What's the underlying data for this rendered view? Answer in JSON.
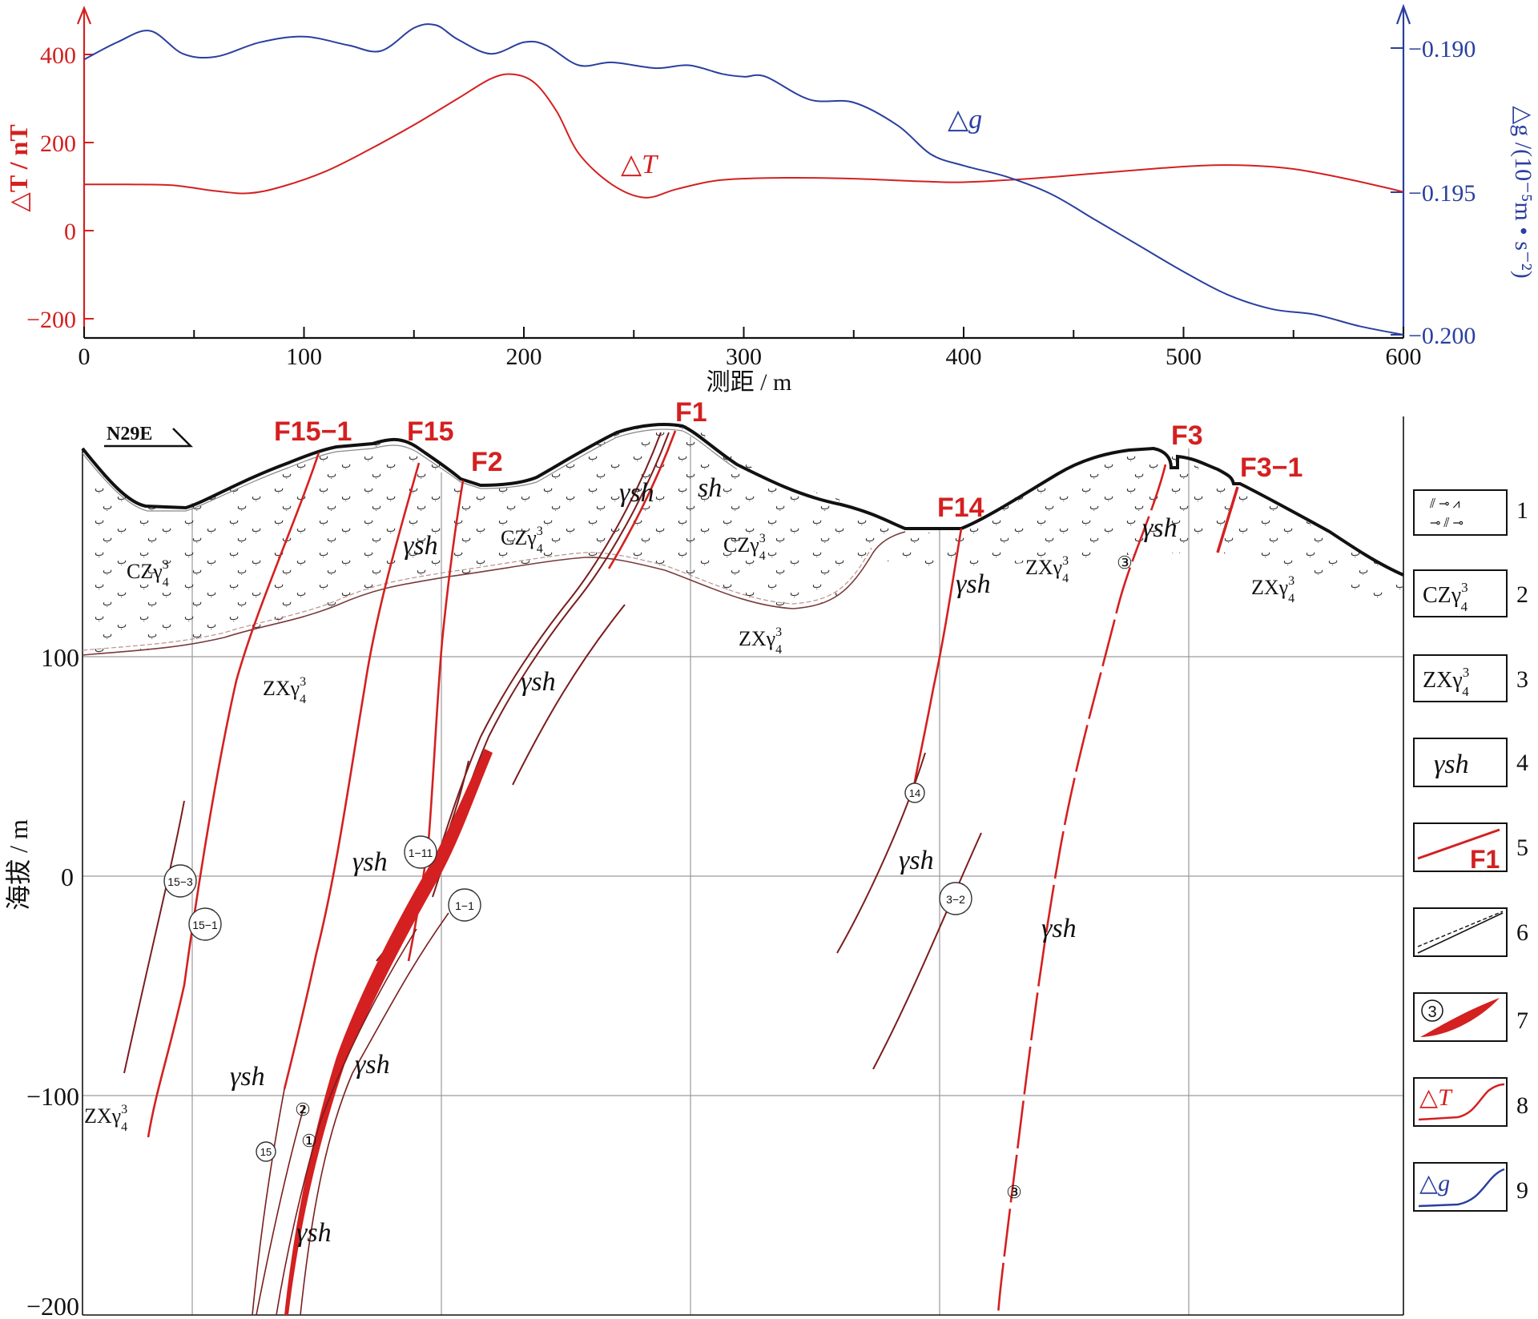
{
  "colors": {
    "delta_t": "#d42020",
    "delta_g": "#2a3f9f",
    "fault": "#d42020",
    "dyke": "#7a1d1d",
    "ink": "#111111",
    "grid": "#9a9a9a"
  },
  "chart_data": {
    "type": "line",
    "x_axis": {
      "label": "测距 / m",
      "range": [
        0,
        600
      ],
      "ticks": [
        "0",
        "100",
        "200",
        "300",
        "400",
        "500",
        "600"
      ]
    },
    "y_left": {
      "label": "△T / nT",
      "range": [
        -200,
        450
      ],
      "ticks": [
        "400",
        "200",
        "0",
        "−200"
      ]
    },
    "y_right": {
      "label": "△g /(10⁻⁵m • s⁻²)",
      "range": [
        -0.2,
        -0.1887
      ],
      "ticks": [
        "−0.190",
        "−0.195",
        "−0.200"
      ]
    },
    "series": [
      {
        "name": "△T",
        "axis": "left",
        "x": [
          0,
          20,
          40,
          60,
          75,
          90,
          110,
          130,
          150,
          170,
          185,
          195,
          205,
          215,
          225,
          240,
          255,
          270,
          290,
          320,
          350,
          380,
          400,
          430,
          460,
          490,
          510,
          530,
          550,
          570,
          590,
          600
        ],
        "y": [
          105,
          105,
          103,
          90,
          85,
          100,
          135,
          185,
          240,
          300,
          345,
          355,
          335,
          270,
          175,
          105,
          75,
          95,
          115,
          120,
          118,
          112,
          110,
          118,
          130,
          142,
          148,
          148,
          140,
          122,
          100,
          88
        ]
      },
      {
        "name": "△g",
        "axis": "right",
        "x": [
          0,
          15,
          30,
          45,
          60,
          80,
          100,
          120,
          135,
          150,
          160,
          170,
          185,
          200,
          210,
          225,
          240,
          260,
          275,
          290,
          300,
          310,
          330,
          350,
          370,
          385,
          400,
          420,
          440,
          460,
          480,
          500,
          520,
          540,
          560,
          580,
          600
        ],
        "y": [
          -0.1904,
          -0.1898,
          -0.1894,
          -0.1902,
          -0.1903,
          -0.1898,
          -0.1896,
          -0.1899,
          -0.1901,
          -0.1893,
          -0.1892,
          -0.1897,
          -0.1902,
          -0.1898,
          -0.1899,
          -0.1906,
          -0.1905,
          -0.1907,
          -0.1906,
          -0.1909,
          -0.191,
          -0.191,
          -0.1918,
          -0.1919,
          -0.1927,
          -0.1937,
          -0.1941,
          -0.1945,
          -0.1951,
          -0.196,
          -0.1969,
          -0.1978,
          -0.1986,
          -0.1991,
          -0.1993,
          -0.1997,
          -0.2
        ]
      }
    ],
    "labels": {
      "delta_t": "△T",
      "delta_g": "△g"
    }
  },
  "section": {
    "direction": "N29E",
    "y_axis": {
      "label": "海拔 / m",
      "ticks": [
        "100",
        "0",
        "−100",
        "−200"
      ]
    },
    "faults": [
      {
        "id": "F15-1",
        "label": "F15−1"
      },
      {
        "id": "F15",
        "label": "F15"
      },
      {
        "id": "F2",
        "label": "F2"
      },
      {
        "id": "F1",
        "label": "F1"
      },
      {
        "id": "F14",
        "label": "F14"
      },
      {
        "id": "F3",
        "label": "F3"
      },
      {
        "id": "F3-1",
        "label": "F3−1"
      }
    ],
    "rock_labels": [
      {
        "base": "CZγ",
        "sup": "3",
        "sub": "4"
      },
      {
        "base": "CZγ",
        "sup": "3",
        "sub": "4"
      },
      {
        "base": "CZγ",
        "sup": "3",
        "sub": "4"
      },
      {
        "base": "ZXγ",
        "sup": "3",
        "sub": "4"
      },
      {
        "base": "ZXγ",
        "sup": "3",
        "sub": "4"
      },
      {
        "base": "ZXγ",
        "sup": "3",
        "sub": "4"
      },
      {
        "base": "ZXγ",
        "sup": "3",
        "sub": "4"
      },
      {
        "base": "ZXγ",
        "sup": "3",
        "sub": "4"
      }
    ],
    "ysh_label": "γsh",
    "sh_label": "sh",
    "ore_bodies": [
      "15−3",
      "15−1",
      "1−11",
      "1−1",
      "②",
      "①",
      "15",
      "14",
      "3−2",
      "③",
      "③"
    ]
  },
  "legend": {
    "items": [
      {
        "number": "1"
      },
      {
        "number": "2",
        "base": "CZγ",
        "sup": "3",
        "sub": "4"
      },
      {
        "number": "3",
        "base": "ZXγ",
        "sup": "3",
        "sub": "4"
      },
      {
        "number": "4",
        "text": "γsh"
      },
      {
        "number": "5",
        "text": "F1"
      },
      {
        "number": "6"
      },
      {
        "number": "7",
        "text": "3"
      },
      {
        "number": "8",
        "text": "△T"
      },
      {
        "number": "9",
        "text": "△g"
      }
    ]
  }
}
